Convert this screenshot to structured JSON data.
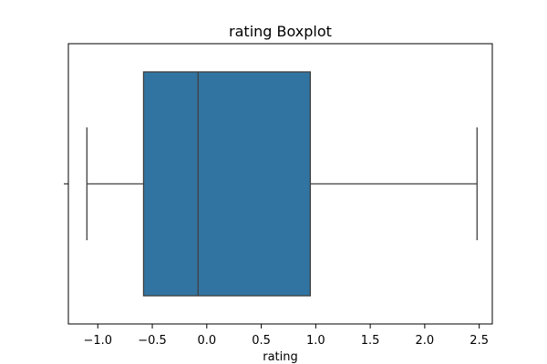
{
  "chart_data": {
    "type": "boxplot",
    "title": "rating Boxplot",
    "xlabel": "rating",
    "ylabel": "",
    "orientation": "horizontal",
    "xlim": [
      -1.27,
      2.62
    ],
    "xticks": [
      -1.0,
      -0.5,
      0.0,
      0.5,
      1.0,
      1.5,
      2.0,
      2.5
    ],
    "xtick_labels": [
      "−1.0",
      "−0.5",
      "0.0",
      "0.5",
      "1.0",
      "1.5",
      "2.0",
      "2.5"
    ],
    "box": {
      "whisker_low": -1.1,
      "q1": -0.58,
      "median": -0.08,
      "q3": 0.95,
      "whisker_high": 2.48
    },
    "grid": false,
    "colors": {
      "box_fill": "#3274a1",
      "box_edge": "#3f3f3f",
      "axes": "#000000"
    }
  }
}
